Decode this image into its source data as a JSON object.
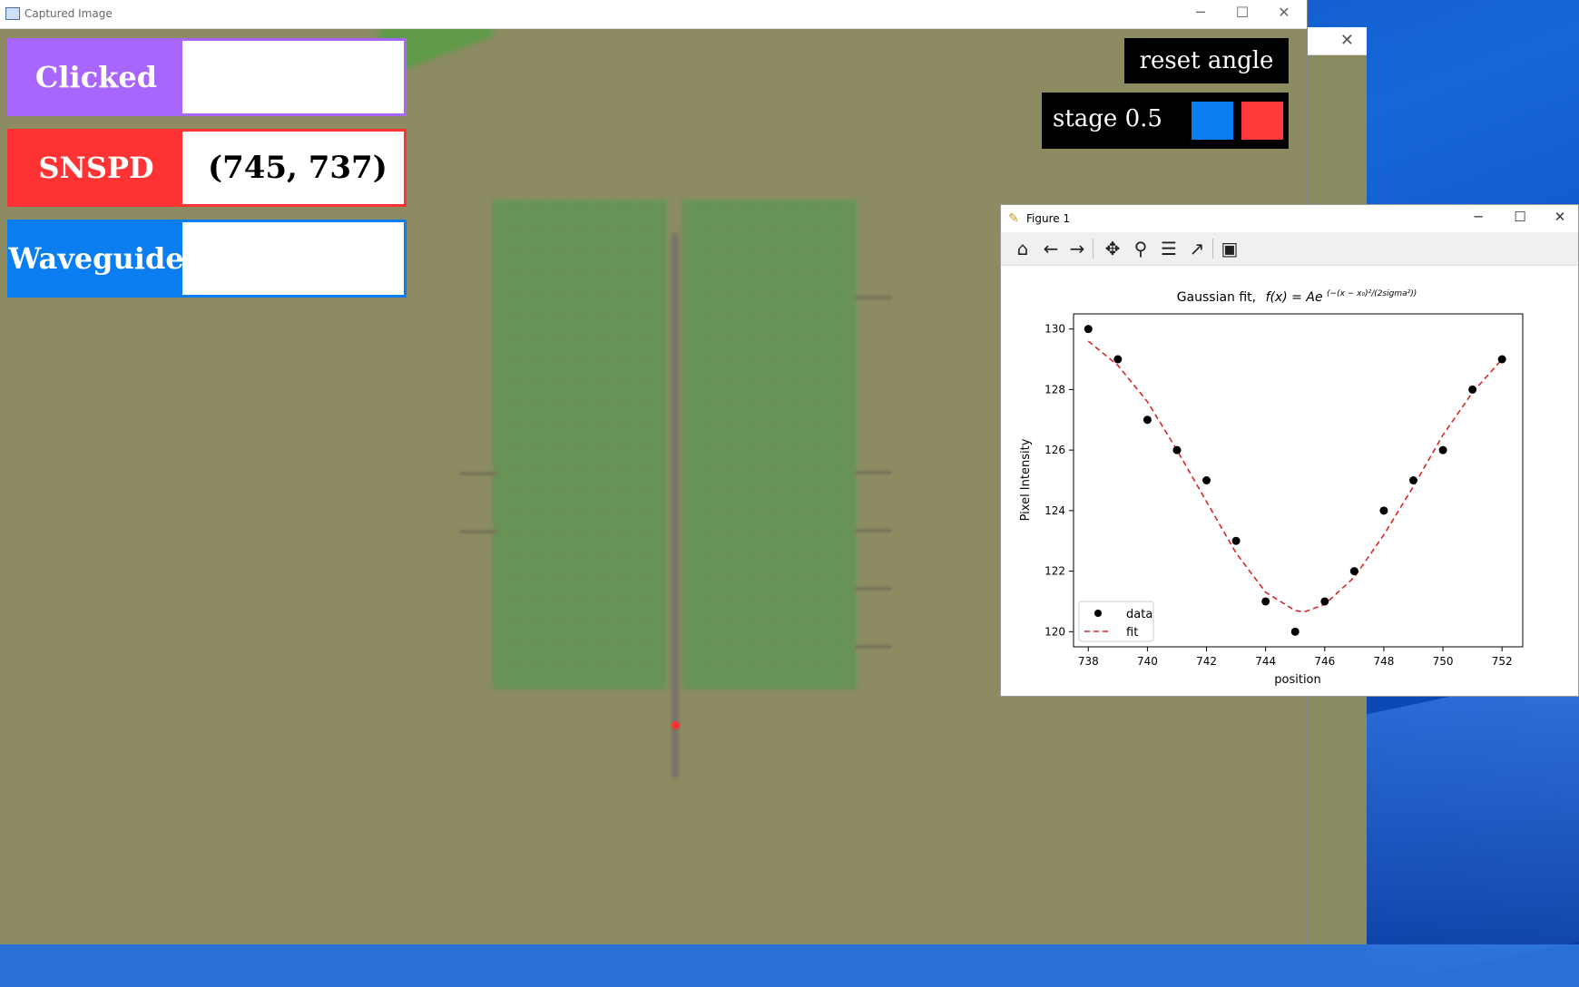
{
  "window": {
    "title": "Captured Image",
    "minimize": "─",
    "maximize": "☐",
    "close": "✕"
  },
  "background_window": {
    "close": "✕"
  },
  "labels": {
    "clicked": {
      "label": "Clicked",
      "value": "",
      "color": "#a866ff"
    },
    "snspd": {
      "label": "SNSPD",
      "value": "(745, 737)",
      "color": "#ff3333"
    },
    "waveguide": {
      "label": "Waveguide",
      "value": "",
      "color": "#0a7df0"
    }
  },
  "controls": {
    "reset_angle": "reset angle",
    "stage_label": "stage 0.5",
    "stage_color_a": "#0a7df0",
    "stage_color_b": "#ff3a3a"
  },
  "figure": {
    "title": "Figure 1",
    "minimize": "─",
    "maximize": "☐",
    "close": "✕",
    "toolbar": [
      "home-icon",
      "back-icon",
      "forward-icon",
      "pan-icon",
      "zoom-icon",
      "configure-subplots-icon",
      "edit-axis-icon",
      "save-icon"
    ]
  },
  "chart_data": {
    "type": "scatter",
    "title": "Gaussian fit,  f(x) = Ae^(−(x − x₀)²/(2sigma²))",
    "title_prefix": "Gaussian fit,",
    "title_formula": "f(x) = Ae",
    "title_exponent": "(−(x − x₀)²/(2sigma²))",
    "xlabel": "position",
    "ylabel": "Pixel Intensity",
    "xlim": [
      737.5,
      752.7
    ],
    "ylim": [
      119.5,
      130.5
    ],
    "xticks": [
      738,
      740,
      742,
      744,
      746,
      748,
      750,
      752
    ],
    "yticks": [
      120,
      122,
      124,
      126,
      128,
      130
    ],
    "legend_position": "lower-left",
    "series": [
      {
        "name": "data",
        "style": "points",
        "color": "#000000",
        "x": [
          738,
          739,
          740,
          741,
          742,
          743,
          744,
          745,
          746,
          747,
          748,
          749,
          750,
          751,
          752
        ],
        "y": [
          130,
          129,
          127,
          126,
          125,
          123,
          121,
          120,
          121,
          122,
          124,
          125,
          126,
          128,
          129
        ]
      },
      {
        "name": "fit",
        "style": "dashed",
        "color": "#d62728",
        "x": [
          738,
          739,
          740,
          741,
          742,
          743,
          744,
          745,
          745.3,
          746,
          747,
          748,
          749,
          750,
          751,
          752
        ],
        "y": [
          129.6,
          128.8,
          127.6,
          126.0,
          124.3,
          122.6,
          121.3,
          120.7,
          120.65,
          120.9,
          121.8,
          123.2,
          124.8,
          126.5,
          127.9,
          129.0
        ]
      }
    ]
  }
}
